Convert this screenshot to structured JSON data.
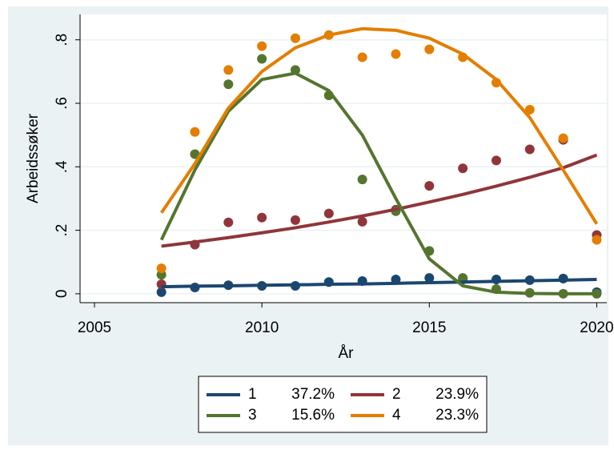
{
  "chart_data": {
    "type": "line",
    "x_label": "År",
    "y_label": "Arbeidssøker",
    "x": [
      2007,
      2008,
      2009,
      2010,
      2011,
      2012,
      2013,
      2014,
      2015,
      2016,
      2017,
      2018,
      2019,
      2020
    ],
    "series": [
      {
        "name": "1",
        "share": {
          "value": 37.2,
          "label": "37.2%"
        },
        "color": "#1a476f",
        "values": [
          0.022,
          0.024,
          0.025,
          0.027,
          0.028,
          0.03,
          0.031,
          0.033,
          0.035,
          0.037,
          0.039,
          0.041,
          0.043,
          0.045
        ],
        "observed": [
          0.005,
          0.02,
          0.027,
          0.025,
          0.025,
          0.037,
          0.04,
          0.045,
          0.05,
          0.045,
          0.045,
          0.043,
          0.048,
          0.005
        ]
      },
      {
        "name": "2",
        "share": {
          "value": 23.9,
          "label": "23.9%"
        },
        "color": "#90353b",
        "values": [
          0.15,
          0.163,
          0.177,
          0.192,
          0.208,
          0.226,
          0.245,
          0.266,
          0.289,
          0.313,
          0.339,
          0.367,
          0.397,
          0.437
        ],
        "observed": [
          0.03,
          0.155,
          0.225,
          0.24,
          0.232,
          0.253,
          0.227,
          0.265,
          0.34,
          0.395,
          0.42,
          0.455,
          0.485,
          0.185
        ]
      },
      {
        "name": "3",
        "share": {
          "value": 15.6,
          "label": "15.6%"
        },
        "color": "#55752f",
        "values": [
          0.17,
          0.39,
          0.575,
          0.675,
          0.695,
          0.64,
          0.5,
          0.3,
          0.11,
          0.025,
          0.005,
          0.001,
          0,
          0
        ],
        "observed": [
          0.06,
          0.44,
          0.66,
          0.74,
          0.705,
          0.625,
          0.36,
          0.26,
          0.135,
          0.05,
          0.015,
          0.003,
          0,
          0
        ]
      },
      {
        "name": "4",
        "share": {
          "value": 23.3,
          "label": "23.3%"
        },
        "color": "#e37e00",
        "values": [
          0.255,
          0.41,
          0.585,
          0.7,
          0.775,
          0.815,
          0.835,
          0.83,
          0.805,
          0.755,
          0.675,
          0.555,
          0.39,
          0.22
        ],
        "observed": [
          0.08,
          0.51,
          0.705,
          0.78,
          0.805,
          0.815,
          0.745,
          0.755,
          0.77,
          0.745,
          0.665,
          0.58,
          0.49,
          0.17
        ]
      }
    ],
    "xlim": [
      2004.57,
      2020.3
    ],
    "xticks": [
      2005,
      2010,
      2015,
      2020
    ],
    "ylim": [
      -0.028,
      0.88
    ],
    "yticks": [
      0,
      {
        "value": 0.2,
        "label": ".2"
      },
      {
        "value": 0.4,
        "label": ".4"
      },
      {
        "value": 0.6,
        "label": ".6"
      },
      {
        "value": 0.8,
        "label": ".8"
      }
    ],
    "grid": true
  }
}
